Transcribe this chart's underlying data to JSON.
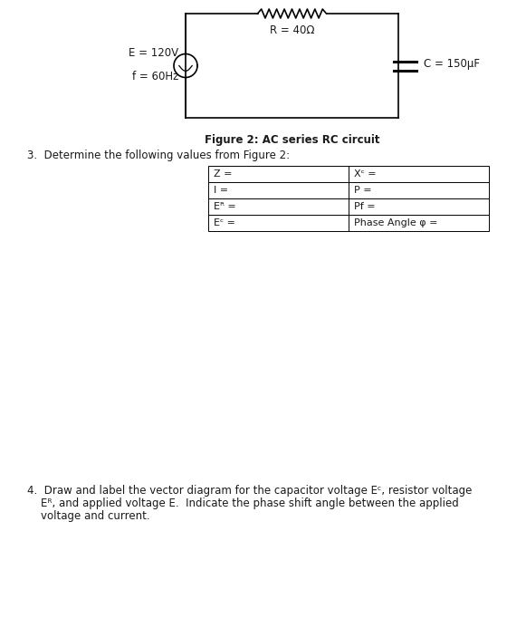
{
  "title": "Figure 2: AC series RC circuit",
  "R_label": "R = 40Ω",
  "E_label": "E = 120V",
  "f_label": "f = 60Hz",
  "C_label": "C = 150μF",
  "section3_header": "3.  Determine the following values from Figure 2:",
  "table_left_col": [
    "Z =",
    "I =",
    "Eᴿ =",
    "Eᶜ ="
  ],
  "table_right_col": [
    "Xᶜ =",
    "P =",
    "Pf =",
    "Phase Angle φ ="
  ],
  "section4_line1": "4.  Draw and label the vector diagram for the capacitor voltage Eᶜ, resistor voltage",
  "section4_line2": "    Eᴿ, and applied voltage E.  Indicate the phase shift angle between the applied",
  "section4_line3": "    voltage and current.",
  "bg_color": "#ffffff",
  "line_color": "#000000",
  "text_color": "#1a1a1a",
  "font_size": 8.5,
  "fig_title_fontsize": 8.5,
  "section_fontsize": 8.5,
  "table_fontsize": 8.0
}
